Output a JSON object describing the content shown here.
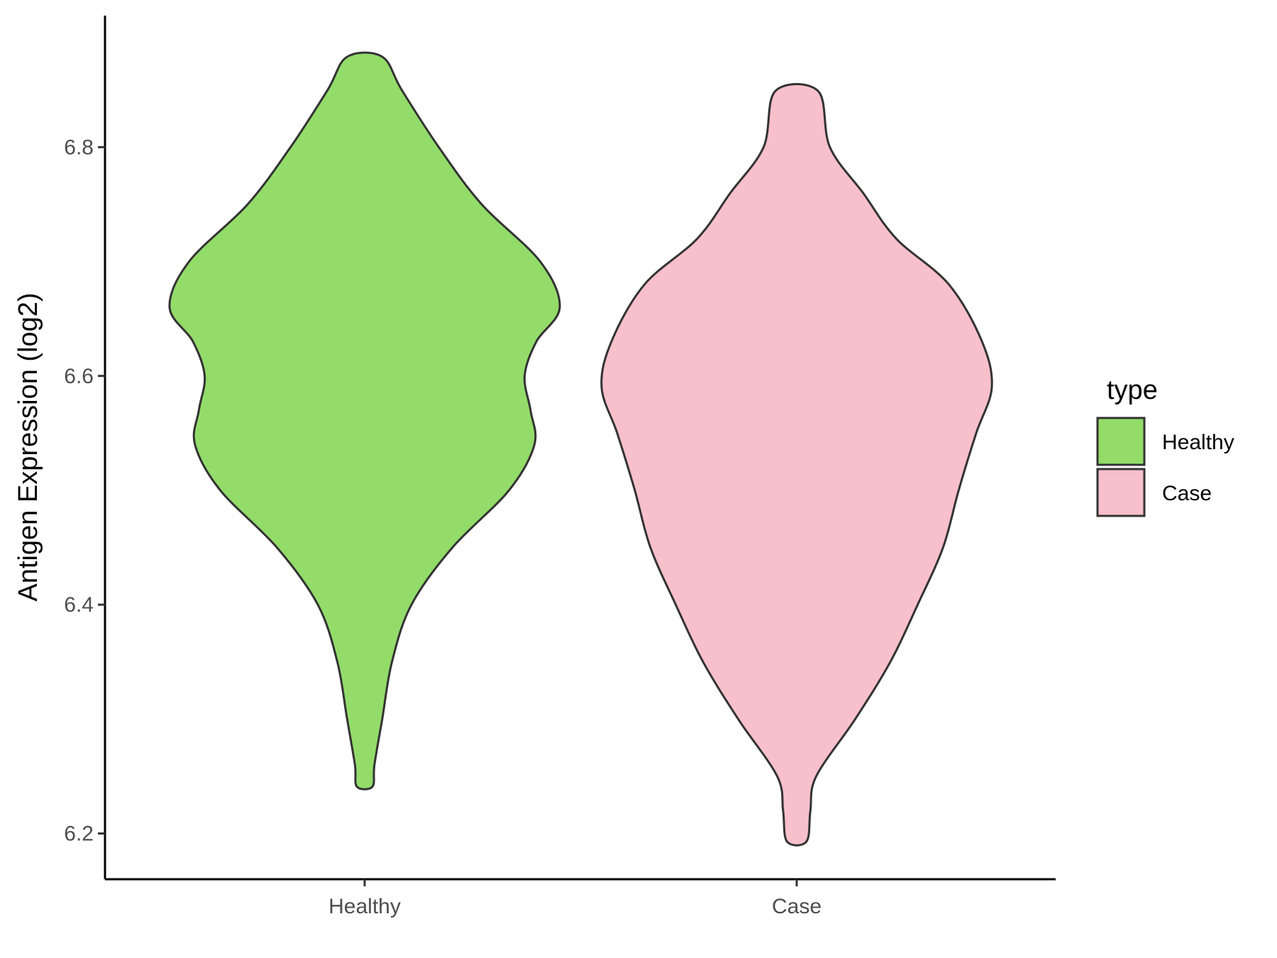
{
  "chart_data": {
    "type": "violin",
    "categories": [
      "Healthy",
      "Case"
    ],
    "ylabel": "Antigen Expression (log2)",
    "xlabel": "",
    "ylim": [
      6.16,
      6.915
    ],
    "yticks": [
      6.2,
      6.4,
      6.6,
      6.8
    ],
    "grid": false,
    "legend": {
      "title": "type",
      "placement": "right",
      "entries": [
        "Healthy",
        "Case"
      ]
    },
    "colors": {
      "Healthy": "#93dc6a",
      "Case": "#f8c0cb",
      "outline": "#333333",
      "axis": "#000000"
    },
    "series": [
      {
        "name": "Healthy",
        "y_min": 6.241,
        "y_max": 6.879,
        "density": [
          [
            6.241,
            0.04
          ],
          [
            6.26,
            0.05
          ],
          [
            6.3,
            0.09
          ],
          [
            6.35,
            0.14
          ],
          [
            6.4,
            0.24
          ],
          [
            6.45,
            0.45
          ],
          [
            6.5,
            0.74
          ],
          [
            6.54,
            0.87
          ],
          [
            6.57,
            0.85
          ],
          [
            6.6,
            0.82
          ],
          [
            6.63,
            0.88
          ],
          [
            6.66,
            1.0
          ],
          [
            6.7,
            0.9
          ],
          [
            6.75,
            0.6
          ],
          [
            6.8,
            0.38
          ],
          [
            6.85,
            0.19
          ],
          [
            6.879,
            0.09
          ]
        ]
      },
      {
        "name": "Case",
        "y_min": 6.193,
        "y_max": 6.849,
        "density": [
          [
            6.193,
            0.05
          ],
          [
            6.22,
            0.07
          ],
          [
            6.25,
            0.1
          ],
          [
            6.3,
            0.3
          ],
          [
            6.35,
            0.48
          ],
          [
            6.4,
            0.62
          ],
          [
            6.45,
            0.75
          ],
          [
            6.5,
            0.83
          ],
          [
            6.55,
            0.92
          ],
          [
            6.59,
            1.0
          ],
          [
            6.63,
            0.95
          ],
          [
            6.68,
            0.78
          ],
          [
            6.72,
            0.51
          ],
          [
            6.76,
            0.34
          ],
          [
            6.8,
            0.17
          ],
          [
            6.849,
            0.11
          ]
        ]
      }
    ]
  }
}
